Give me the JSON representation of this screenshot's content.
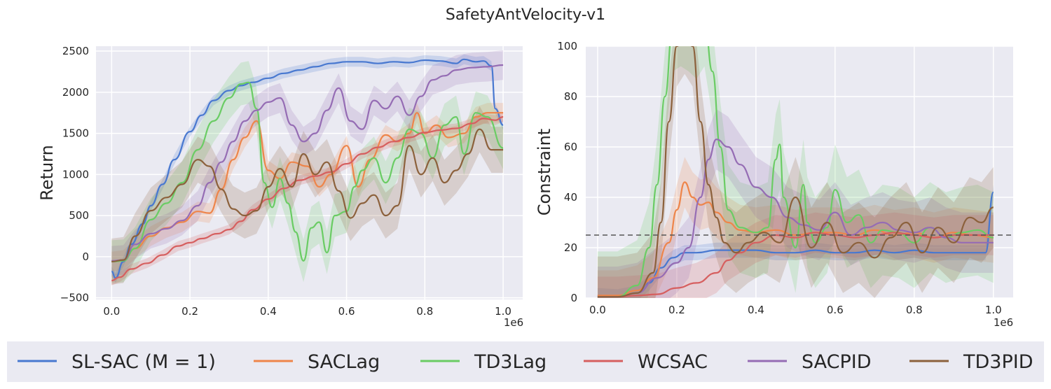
{
  "title": "SafetyAntVelocity-v1",
  "colors": {
    "SL-SAC (M = 1)": "#4878d0",
    "SACLag": "#ee854a",
    "TD3Lag": "#6acc64",
    "WCSAC": "#d65f5f",
    "SACPID": "#956cb4",
    "TD3PID": "#8c613c",
    "panel_bg": "#eaeaf2",
    "threshold": "#555555"
  },
  "legend": [
    "SL-SAC (M = 1)",
    "SACLag",
    "TD3Lag",
    "WCSAC",
    "SACPID",
    "TD3PID"
  ],
  "chart_data": [
    {
      "type": "line",
      "ylabel": "Return",
      "xlabel": "",
      "x_multiplier": "1e6",
      "xlim": [
        -0.04,
        1.05
      ],
      "ylim": [
        -520,
        2560
      ],
      "xticks": [
        0.0,
        0.2,
        0.4,
        0.6,
        0.8,
        1.0
      ],
      "xtick_labels": [
        "0.0",
        "0.2",
        "0.4",
        "0.6",
        "0.8",
        "1.0"
      ],
      "yticks": [
        -500,
        0,
        500,
        1000,
        1500,
        2000,
        2500
      ],
      "ytick_labels": [
        "−500",
        "0",
        "500",
        "1000",
        "1500",
        "2000",
        "2500"
      ],
      "series": [
        {
          "name": "SL-SAC (M = 1)",
          "x": [
            0,
            0.01,
            0.03,
            0.05,
            0.08,
            0.1,
            0.13,
            0.16,
            0.2,
            0.23,
            0.26,
            0.3,
            0.33,
            0.36,
            0.4,
            0.44,
            0.48,
            0.52,
            0.56,
            0.6,
            0.64,
            0.68,
            0.72,
            0.76,
            0.8,
            0.84,
            0.88,
            0.9,
            0.93,
            0.95,
            0.97,
            0.98,
            1.0
          ],
          "y": [
            -180,
            -260,
            -60,
            150,
            400,
            620,
            880,
            1180,
            1520,
            1720,
            1900,
            2020,
            2080,
            2120,
            2170,
            2230,
            2270,
            2310,
            2350,
            2370,
            2370,
            2350,
            2370,
            2360,
            2390,
            2380,
            2350,
            2400,
            2370,
            2380,
            2320,
            1800,
            1600
          ],
          "band": 60
        },
        {
          "name": "SACLag",
          "x": [
            0,
            0.03,
            0.06,
            0.1,
            0.14,
            0.18,
            0.22,
            0.25,
            0.28,
            0.31,
            0.34,
            0.37,
            0.4,
            0.43,
            0.46,
            0.5,
            0.53,
            0.56,
            0.6,
            0.63,
            0.66,
            0.7,
            0.73,
            0.76,
            0.78,
            0.8,
            0.83,
            0.86,
            0.9,
            0.93,
            0.96,
            1.0
          ],
          "y": [
            -60,
            -40,
            100,
            250,
            350,
            420,
            550,
            530,
            820,
            1180,
            1450,
            1650,
            1050,
            950,
            1150,
            1100,
            850,
            1000,
            1350,
            850,
            1180,
            1480,
            1400,
            1500,
            1750,
            1500,
            1600,
            1450,
            1500,
            1700,
            1750,
            1750
          ],
          "band": 120
        },
        {
          "name": "TD3Lag",
          "x": [
            0,
            0.03,
            0.06,
            0.1,
            0.14,
            0.18,
            0.22,
            0.26,
            0.3,
            0.33,
            0.35,
            0.37,
            0.39,
            0.41,
            0.43,
            0.45,
            0.47,
            0.49,
            0.51,
            0.53,
            0.55,
            0.57,
            0.6,
            0.62,
            0.64,
            0.67,
            0.7,
            0.73,
            0.76,
            0.79,
            0.82,
            0.85,
            0.88,
            0.9,
            0.93,
            0.96,
            1.0
          ],
          "y": [
            -60,
            -50,
            100,
            450,
            650,
            900,
            1300,
            1650,
            1930,
            2100,
            2120,
            1800,
            900,
            600,
            950,
            650,
            300,
            -50,
            350,
            420,
            50,
            500,
            550,
            850,
            1050,
            1200,
            900,
            1200,
            1550,
            1500,
            1200,
            1600,
            1700,
            1250,
            1750,
            1700,
            1320
          ],
          "band": 260
        },
        {
          "name": "WCSAC",
          "x": [
            0,
            0.02,
            0.05,
            0.09,
            0.13,
            0.17,
            0.2,
            0.23,
            0.27,
            0.3,
            0.33,
            0.36,
            0.4,
            0.44,
            0.48,
            0.52,
            0.56,
            0.6,
            0.64,
            0.68,
            0.72,
            0.76,
            0.8,
            0.84,
            0.88,
            0.92,
            0.95,
            0.98,
            1.0
          ],
          "y": [
            -290,
            -250,
            -150,
            -80,
            20,
            130,
            170,
            220,
            280,
            330,
            430,
            570,
            700,
            830,
            930,
            980,
            1030,
            1130,
            1250,
            1330,
            1400,
            1450,
            1510,
            1540,
            1560,
            1620,
            1680,
            1660,
            1700
          ],
          "band": 60
        },
        {
          "name": "SACPID",
          "x": [
            0,
            0.03,
            0.06,
            0.1,
            0.14,
            0.18,
            0.22,
            0.25,
            0.28,
            0.31,
            0.34,
            0.37,
            0.4,
            0.43,
            0.46,
            0.49,
            0.52,
            0.55,
            0.58,
            0.61,
            0.64,
            0.67,
            0.7,
            0.73,
            0.76,
            0.79,
            0.82,
            0.85,
            0.88,
            0.92,
            0.96,
            1.0
          ],
          "y": [
            -50,
            -40,
            150,
            280,
            340,
            440,
            620,
            900,
            1150,
            1400,
            1650,
            1780,
            1880,
            1930,
            1600,
            1400,
            1500,
            1780,
            2050,
            1650,
            1550,
            1900,
            1800,
            1950,
            1720,
            1950,
            2150,
            2200,
            2270,
            2300,
            2310,
            2330
          ],
          "band": 180
        },
        {
          "name": "TD3PID",
          "x": [
            0,
            0.03,
            0.06,
            0.1,
            0.14,
            0.18,
            0.22,
            0.25,
            0.28,
            0.31,
            0.34,
            0.37,
            0.4,
            0.43,
            0.46,
            0.49,
            0.52,
            0.55,
            0.58,
            0.61,
            0.64,
            0.67,
            0.7,
            0.73,
            0.76,
            0.79,
            0.82,
            0.85,
            0.88,
            0.91,
            0.94,
            0.97,
            1.0
          ],
          "y": [
            -60,
            -40,
            250,
            560,
            720,
            880,
            1180,
            1100,
            820,
            580,
            500,
            560,
            850,
            1070,
            850,
            1250,
            1000,
            1150,
            800,
            470,
            650,
            750,
            500,
            620,
            1350,
            1000,
            1200,
            900,
            1050,
            1250,
            1550,
            1300,
            1300
          ],
          "band": 280
        }
      ]
    },
    {
      "type": "line",
      "ylabel": "Constraint",
      "xlabel": "",
      "x_multiplier": "1e6",
      "xlim": [
        -0.03,
        1.05
      ],
      "ylim": [
        0,
        100
      ],
      "xticks": [
        0.0,
        0.2,
        0.4,
        0.6,
        0.8,
        1.0
      ],
      "xtick_labels": [
        "0.0",
        "0.2",
        "0.4",
        "0.6",
        "0.8",
        "1.0"
      ],
      "yticks": [
        0,
        20,
        40,
        60,
        80,
        100
      ],
      "ytick_labels": [
        "0",
        "20",
        "40",
        "60",
        "80",
        "100"
      ],
      "threshold": 25,
      "series": [
        {
          "name": "SL-SAC (M = 1)",
          "x": [
            0,
            0.05,
            0.1,
            0.13,
            0.16,
            0.19,
            0.22,
            0.25,
            0.3,
            0.35,
            0.4,
            0.45,
            0.5,
            0.55,
            0.6,
            0.65,
            0.7,
            0.75,
            0.8,
            0.85,
            0.9,
            0.95,
            0.98,
            1.0
          ],
          "y": [
            1,
            0.5,
            2,
            6,
            12,
            16,
            18,
            18,
            19,
            19,
            19,
            18,
            18,
            19,
            18,
            18,
            19,
            18,
            19,
            18,
            18,
            18,
            18,
            42
          ],
          "band": 3
        },
        {
          "name": "SACLag",
          "x": [
            0,
            0.05,
            0.1,
            0.14,
            0.18,
            0.2,
            0.22,
            0.24,
            0.26,
            0.28,
            0.3,
            0.33,
            0.36,
            0.4,
            0.45,
            0.5,
            0.55,
            0.6,
            0.65,
            0.7,
            0.75,
            0.8,
            0.85,
            0.9,
            0.95,
            1.0
          ],
          "y": [
            1,
            1,
            3,
            8,
            22,
            35,
            46,
            40,
            37,
            38,
            34,
            30,
            27,
            26,
            27,
            25,
            26,
            26,
            25,
            27,
            25,
            26,
            24,
            26,
            25,
            24
          ],
          "band": 10
        },
        {
          "name": "TD3Lag",
          "x": [
            0,
            0.05,
            0.1,
            0.13,
            0.15,
            0.17,
            0.19,
            0.21,
            0.23,
            0.25,
            0.27,
            0.29,
            0.31,
            0.33,
            0.36,
            0.4,
            0.43,
            0.45,
            0.46,
            0.47,
            0.5,
            0.52,
            0.53,
            0.55,
            0.58,
            0.6,
            0.63,
            0.66,
            0.69,
            0.72,
            0.76,
            0.8,
            0.84,
            0.88,
            0.92,
            0.96,
            1.0
          ],
          "y": [
            0.5,
            0.5,
            5,
            20,
            45,
            80,
            108,
            110,
            108,
            105,
            110,
            90,
            60,
            35,
            28,
            26,
            28,
            55,
            61,
            40,
            20,
            45,
            30,
            22,
            28,
            43,
            30,
            33,
            22,
            27,
            26,
            22,
            28,
            24,
            26,
            27,
            24
          ],
          "band": 18
        },
        {
          "name": "WCSAC",
          "x": [
            0,
            0.05,
            0.1,
            0.15,
            0.2,
            0.25,
            0.3,
            0.33,
            0.36,
            0.4,
            0.45,
            0.5,
            0.55,
            0.6,
            0.65,
            0.7,
            0.75,
            0.8,
            0.85,
            0.9,
            0.95,
            1.0
          ],
          "y": [
            0.5,
            0.5,
            1,
            1.5,
            4,
            6,
            10,
            15,
            18,
            22,
            25,
            24,
            26,
            25,
            24,
            25,
            26,
            25,
            24,
            25,
            25,
            25
          ],
          "band": 8
        },
        {
          "name": "SACPID",
          "x": [
            0,
            0.05,
            0.1,
            0.15,
            0.2,
            0.23,
            0.26,
            0.28,
            0.3,
            0.33,
            0.36,
            0.4,
            0.44,
            0.48,
            0.52,
            0.56,
            0.6,
            0.64,
            0.68,
            0.72,
            0.76,
            0.8,
            0.84,
            0.88,
            0.92,
            0.96,
            1.0
          ],
          "y": [
            0.5,
            0.5,
            2,
            8,
            14,
            20,
            40,
            55,
            63,
            60,
            53,
            44,
            40,
            32,
            29,
            27,
            34,
            25,
            28,
            30,
            27,
            26,
            28,
            24,
            22,
            22,
            22
          ],
          "band": 12
        },
        {
          "name": "TD3PID",
          "x": [
            0,
            0.05,
            0.1,
            0.14,
            0.16,
            0.18,
            0.2,
            0.22,
            0.24,
            0.26,
            0.28,
            0.3,
            0.32,
            0.35,
            0.38,
            0.42,
            0.46,
            0.5,
            0.54,
            0.58,
            0.62,
            0.66,
            0.7,
            0.74,
            0.78,
            0.82,
            0.86,
            0.9,
            0.94,
            0.97,
            1.0
          ],
          "y": [
            0.5,
            0.5,
            2,
            10,
            30,
            70,
            100,
            105,
            100,
            70,
            45,
            32,
            22,
            18,
            22,
            26,
            22,
            40,
            20,
            30,
            18,
            22,
            16,
            24,
            30,
            18,
            28,
            22,
            32,
            30,
            36
          ],
          "band": 16
        }
      ]
    }
  ]
}
